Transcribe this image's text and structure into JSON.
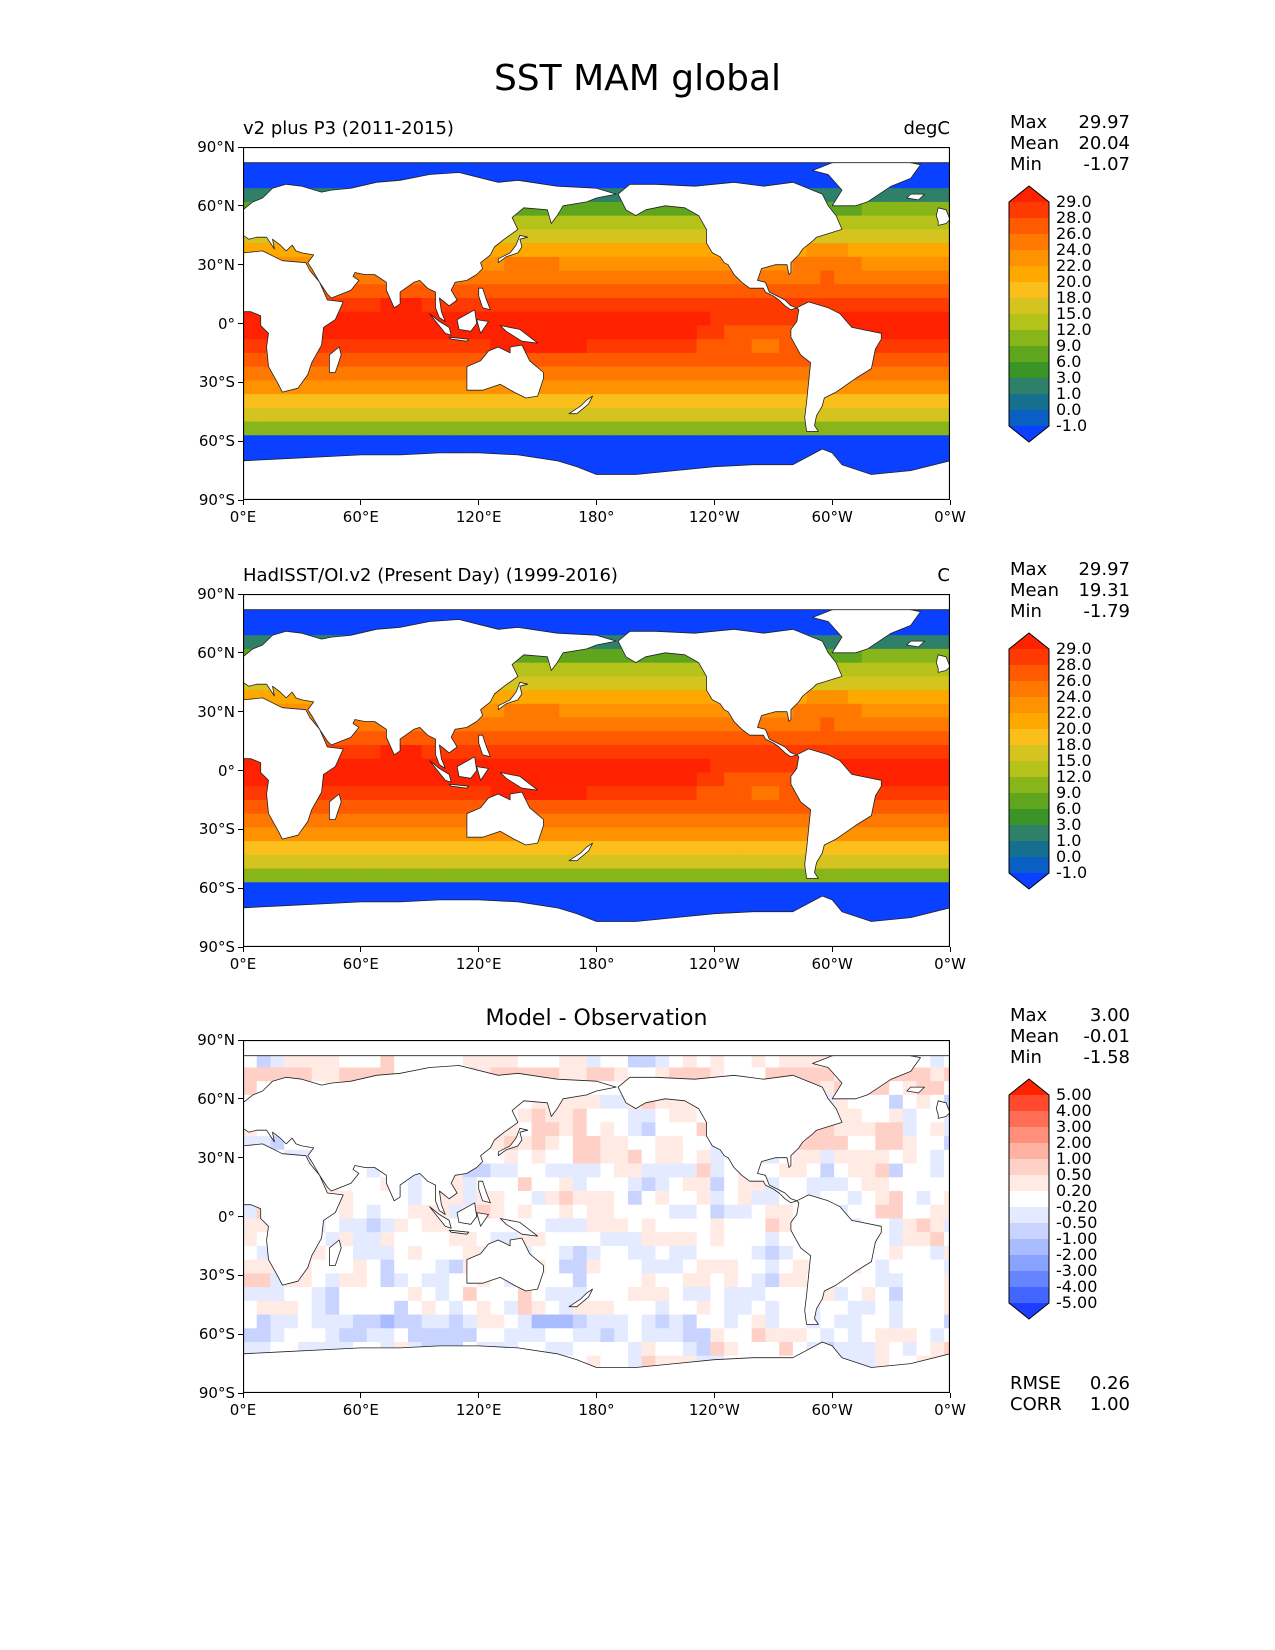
{
  "figure": {
    "title": "SST MAM global"
  },
  "panels": [
    {
      "id": "model",
      "title_left": "v2 plus P3 (2011-2015)",
      "title_right": "degC",
      "title_center": "",
      "stats": [
        {
          "key": "Max",
          "value": "29.97"
        },
        {
          "key": "Mean",
          "value": "20.04"
        },
        {
          "key": "Min",
          "value": "-1.07"
        }
      ],
      "field": "sst",
      "colorbar_key": "sst"
    },
    {
      "id": "obs",
      "title_left": "HadISST/OI.v2 (Present Day) (1999-2016)",
      "title_right": "C",
      "title_center": "",
      "stats": [
        {
          "key": "Max",
          "value": "29.97"
        },
        {
          "key": "Mean",
          "value": "19.31"
        },
        {
          "key": "Min",
          "value": "-1.79"
        }
      ],
      "field": "sst",
      "colorbar_key": "sst"
    },
    {
      "id": "diff",
      "title_left": "",
      "title_right": "",
      "title_center": "Model - Observation",
      "stats": [
        {
          "key": "Max",
          "value": "3.00"
        },
        {
          "key": "Mean",
          "value": "-0.01"
        },
        {
          "key": "Min",
          "value": "-1.58"
        }
      ],
      "field": "diff",
      "colorbar_key": "diff",
      "extra_stats": [
        {
          "key": "RMSE",
          "value": "0.26"
        },
        {
          "key": "CORR",
          "value": "1.00"
        }
      ]
    }
  ],
  "axes": {
    "xticks": [
      "0°E",
      "60°E",
      "120°E",
      "180°",
      "120°W",
      "60°W",
      "0°W"
    ],
    "yticks": [
      "90°N",
      "60°N",
      "30°N",
      "0°",
      "30°S",
      "60°S",
      "90°S"
    ]
  },
  "colorbars": {
    "sst": {
      "labels": [
        "29.0",
        "28.0",
        "26.0",
        "24.0",
        "22.0",
        "20.0",
        "18.0",
        "15.0",
        "12.0",
        "9.0",
        "6.0",
        "3.0",
        "1.0",
        "0.0",
        "-1.0"
      ],
      "colors": [
        "#ff2200",
        "#ff3a00",
        "#ff5a00",
        "#ff7800",
        "#ff9200",
        "#ffa800",
        "#fbbf1c",
        "#d5c41f",
        "#b5c21a",
        "#88b51a",
        "#5fa51e",
        "#3b9427",
        "#2e8068",
        "#157090",
        "#0a5fc4",
        "#0a40ff"
      ]
    },
    "diff": {
      "labels": [
        "5.00",
        "4.00",
        "3.00",
        "2.00",
        "1.00",
        "0.50",
        "0.20",
        "-0.20",
        "-0.50",
        "-1.00",
        "-2.00",
        "-3.00",
        "-4.00",
        "-5.00"
      ],
      "colors": [
        "#ff2200",
        "#ff4a30",
        "#ff6d55",
        "#ff8f7a",
        "#ffb2a2",
        "#ffd1c6",
        "#ffeae4",
        "#ffffff",
        "#e4eaff",
        "#c8d4ff",
        "#a9bcff",
        "#88a2ff",
        "#6684ff",
        "#4365ff",
        "#1e3dff"
      ]
    }
  },
  "legend_keys": {
    "sst": "sst",
    "diff": "diff"
  },
  "colors": {
    "land": "#ffffff",
    "coast": "#222222"
  }
}
